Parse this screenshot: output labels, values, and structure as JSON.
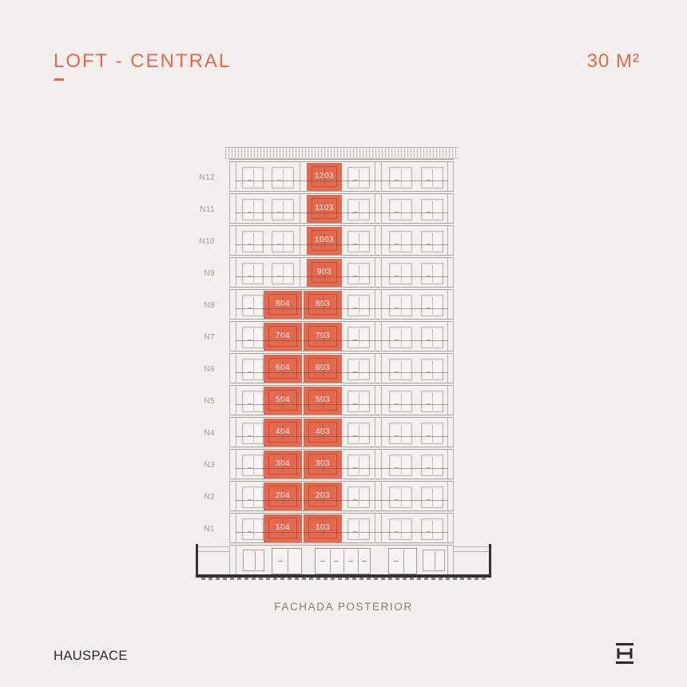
{
  "header": {
    "title": "LOFT - CENTRAL",
    "area": "30 M²"
  },
  "colors": {
    "background": "#f2f0ec",
    "accent": "#e5694f",
    "line_gray": "#b3b1ac",
    "slab_gray": "#a9a7a2",
    "label_gray": "#9c9a95",
    "caption_brown": "#8b7d6f",
    "ink": "#2b2a27",
    "unit_text": "#fdf5f2"
  },
  "building": {
    "caption": "FACHADA POSTERIOR",
    "floors": [
      {
        "level": "N12",
        "units": [
          "1203"
        ]
      },
      {
        "level": "N11",
        "units": [
          "1103"
        ]
      },
      {
        "level": "N10",
        "units": [
          "1003"
        ]
      },
      {
        "level": "N9",
        "units": [
          "903"
        ]
      },
      {
        "level": "N8",
        "units": [
          "804",
          "803"
        ]
      },
      {
        "level": "N7",
        "units": [
          "704",
          "703"
        ]
      },
      {
        "level": "N6",
        "units": [
          "604",
          "603"
        ]
      },
      {
        "level": "N5",
        "units": [
          "504",
          "503"
        ]
      },
      {
        "level": "N4",
        "units": [
          "404",
          "403"
        ]
      },
      {
        "level": "N3",
        "units": [
          "304",
          "303"
        ]
      },
      {
        "level": "N2",
        "units": [
          "204",
          "203"
        ]
      },
      {
        "level": "N1",
        "units": [
          "104",
          "103"
        ]
      }
    ]
  },
  "footer": {
    "brand": "HAUSPACE",
    "logo": "hauspace-h-monogram"
  }
}
